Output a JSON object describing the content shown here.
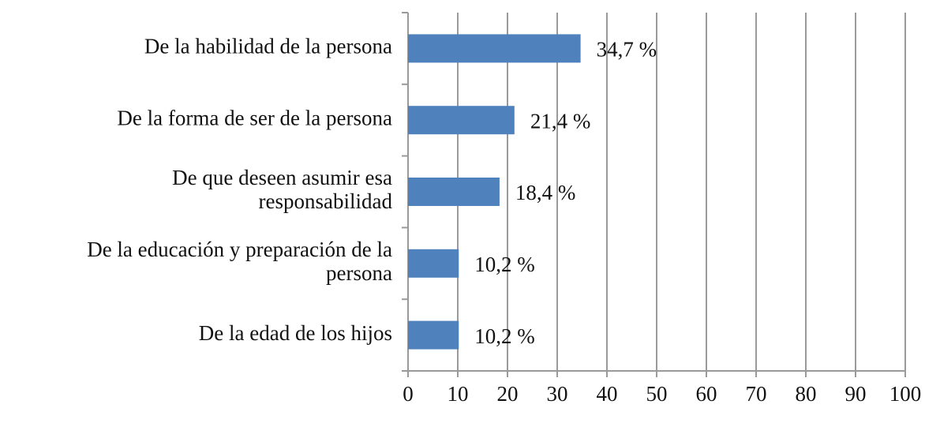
{
  "chart_data": {
    "type": "hbar",
    "categories": [
      "De la habilidad de la persona",
      "De la forma de ser de la persona",
      "De que deseen asumir esa\nresponsabilidad",
      "De la educación y preparación de la\npersona",
      "De la edad de los hijos"
    ],
    "values": [
      34.7,
      21.4,
      18.4,
      10.2,
      10.2
    ],
    "value_labels": [
      "34,7 %",
      "21,4 %",
      "18,4 %",
      "10,2 %",
      "10,2 %"
    ],
    "color": "#4f81bd",
    "xlim": [
      0,
      100
    ],
    "xticks": [
      0,
      10,
      20,
      30,
      40,
      50,
      60,
      70,
      80,
      90,
      100
    ],
    "grid": true
  }
}
